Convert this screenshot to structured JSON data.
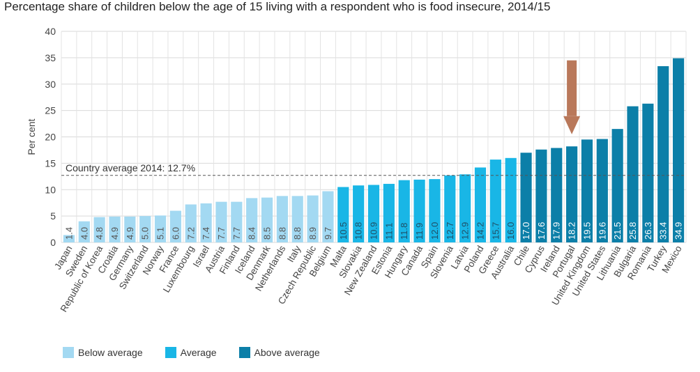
{
  "chart_data": {
    "type": "bar",
    "title": "Percentage share of children below the age of 15 living with a respondent who is food insecure, 2014/15",
    "ylabel": "Per cent",
    "xlabel": "",
    "ylim": [
      0,
      40
    ],
    "yticks": [
      0,
      5,
      10,
      15,
      20,
      25,
      30,
      35,
      40
    ],
    "grid": true,
    "categories": [
      "Japan",
      "Sweden",
      "Republic of Korea",
      "Croatia",
      "Germany",
      "Switzerland",
      "Norway",
      "France",
      "Luxembourg",
      "Israel",
      "Austria",
      "Finland",
      "Iceland",
      "Denmark",
      "Netherlands",
      "Italy",
      "Czech Republic",
      "Belgium",
      "Malta",
      "Slovakia",
      "New Zealand",
      "Estonia",
      "Hungary",
      "Canada",
      "Spain",
      "Slovenia",
      "Latvia",
      "Poland",
      "Greece",
      "Australia",
      "Chile",
      "Cyprus",
      "Ireland",
      "Portugal",
      "United Kingdom",
      "United States",
      "Lithuania",
      "Bulgaria",
      "Romania",
      "Turkey",
      "Mexico"
    ],
    "values": [
      1.4,
      4.0,
      4.8,
      4.9,
      4.9,
      5.0,
      5.1,
      6.0,
      7.2,
      7.4,
      7.7,
      7.7,
      8.4,
      8.5,
      8.8,
      8.8,
      8.9,
      9.7,
      10.5,
      10.8,
      10.9,
      11.1,
      11.8,
      11.9,
      12.0,
      12.7,
      12.9,
      14.2,
      15.7,
      16.0,
      17.0,
      17.6,
      17.9,
      18.2,
      19.5,
      19.6,
      21.5,
      25.8,
      26.3,
      33.4,
      34.9
    ],
    "labels": [
      "1.4",
      "4.0",
      "4.8",
      "4.9",
      "4.9",
      "5.0",
      "5.1",
      "6.0",
      "7.2",
      "7.4",
      "7.7",
      "7.7",
      "8.4",
      "8.5",
      "8.8",
      "8.8",
      "8.9",
      "9.7",
      "10.5",
      "10.8",
      "10.9",
      "11.1",
      "11.8",
      "11.9",
      "12.0",
      "12.7",
      "12.9",
      "14.2",
      "15.7",
      "16.0",
      "17.0",
      "17.6",
      "17.9",
      "18.2",
      "19.5",
      "19.6",
      "21.5",
      "25.8",
      "26.3",
      "33.4",
      "34.9"
    ],
    "groups": [
      "below",
      "below",
      "below",
      "below",
      "below",
      "below",
      "below",
      "below",
      "below",
      "below",
      "below",
      "below",
      "below",
      "below",
      "below",
      "below",
      "below",
      "below",
      "average",
      "average",
      "average",
      "average",
      "average",
      "average",
      "average",
      "average",
      "average",
      "average",
      "average",
      "average",
      "above",
      "above",
      "above",
      "above",
      "above",
      "above",
      "above",
      "above",
      "above",
      "above",
      "above"
    ],
    "reference_line": {
      "value": 12.7,
      "label": "Country average 2014: 12.7%"
    },
    "annotation_arrow": {
      "category": "Portugal",
      "from_value": 34.5,
      "to_value": 20.5,
      "color": "#b9785a"
    },
    "legend": [
      {
        "key": "below",
        "label": "Below average",
        "color": "#a3d9f2"
      },
      {
        "key": "average",
        "label": "Average",
        "color": "#19b6e6"
      },
      {
        "key": "above",
        "label": "Above average",
        "color": "#0c7fa8"
      }
    ]
  }
}
